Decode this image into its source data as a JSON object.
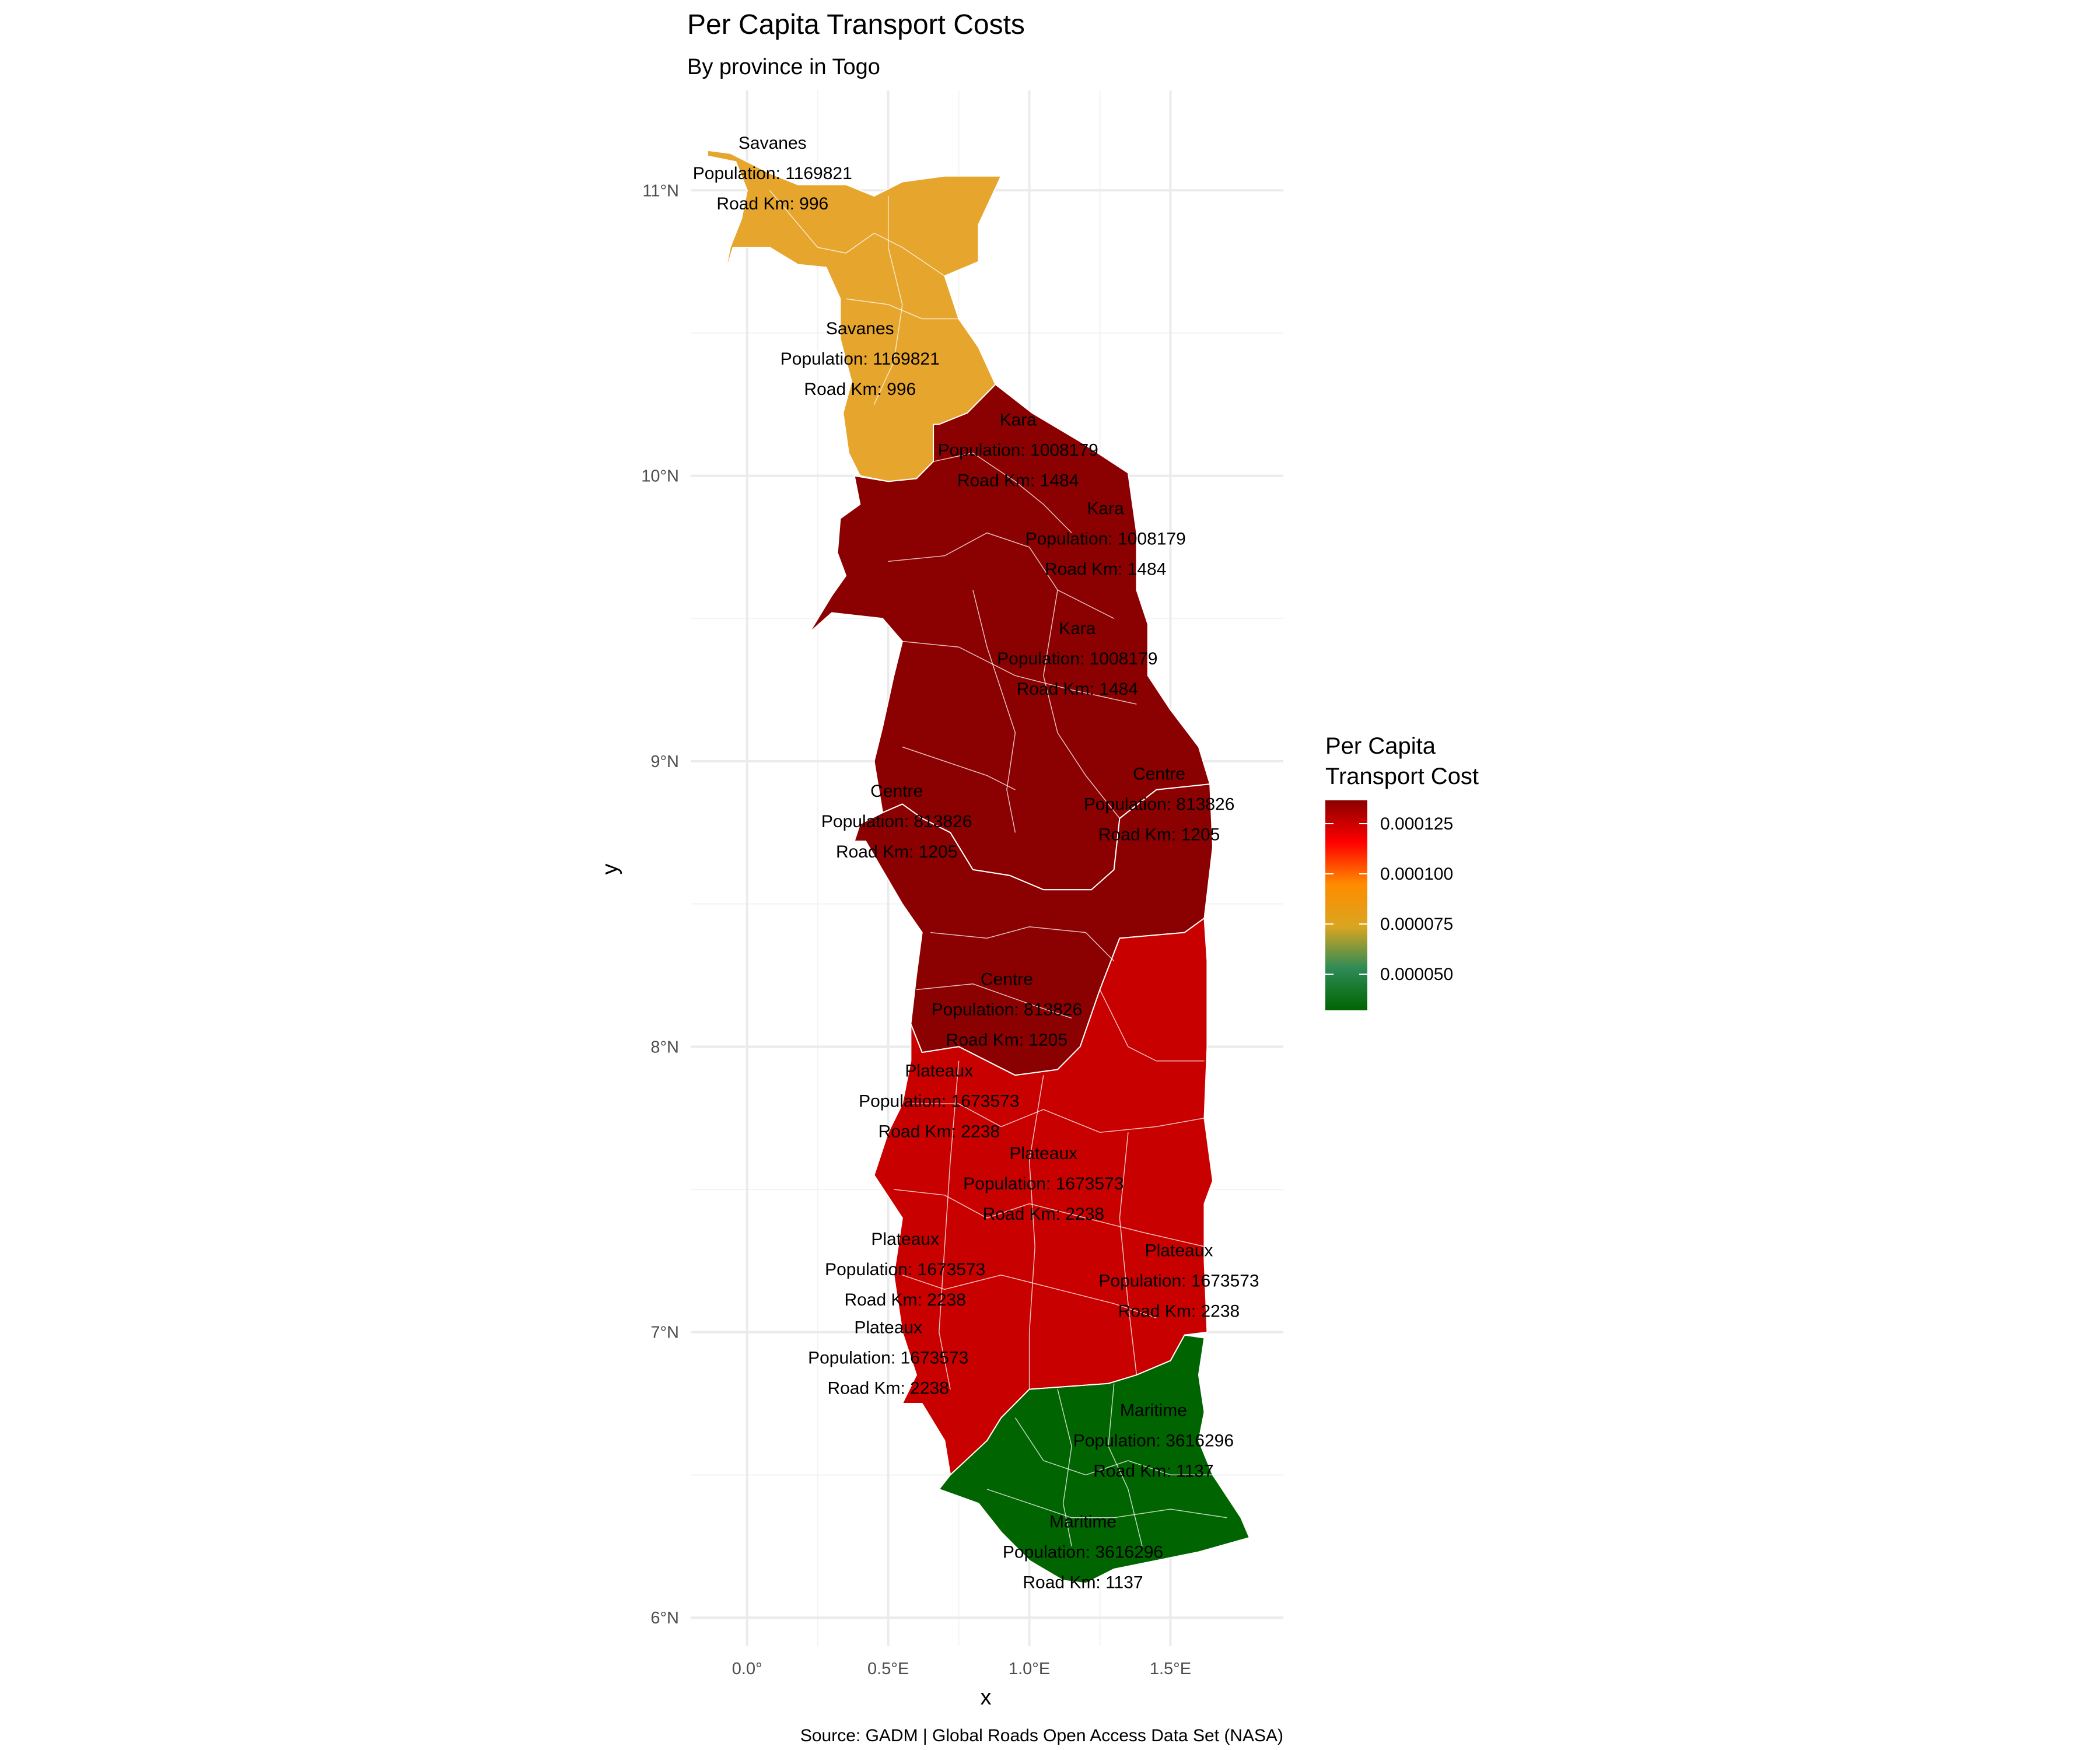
{
  "title": "Per Capita Transport Costs",
  "subtitle": "By province in Togo",
  "caption": "Source: GADM | Global Roads Open Access Data Set (NASA)",
  "axes": {
    "x_title": "x",
    "y_title": "y",
    "x_ticks": [
      {
        "value": 0.0,
        "label": "0.0°"
      },
      {
        "value": 0.5,
        "label": "0.5°E"
      },
      {
        "value": 1.0,
        "label": "1.0°E"
      },
      {
        "value": 1.5,
        "label": "1.5°E"
      }
    ],
    "y_ticks": [
      {
        "value": 6,
        "label": "6°N"
      },
      {
        "value": 7,
        "label": "7°N"
      },
      {
        "value": 8,
        "label": "8°N"
      },
      {
        "value": 9,
        "label": "9°N"
      },
      {
        "value": 10,
        "label": "10°N"
      },
      {
        "value": 11,
        "label": "11°N"
      }
    ],
    "x_range": [
      -0.2,
      1.9
    ],
    "y_range": [
      5.9,
      11.35
    ]
  },
  "legend": {
    "title_line1": "Per Capita",
    "title_line2": "Transport Cost",
    "labels": [
      "0.000125",
      "0.000100",
      "0.000075",
      "0.000050"
    ],
    "gradient_colors": [
      "#8b0000",
      "#ff0000",
      "#ff8c00",
      "#daa520",
      "#2e8b57",
      "#006400"
    ]
  },
  "regions": [
    {
      "name": "Savanes",
      "population": 1169821,
      "road_km": 996,
      "cost": 8.51e-05,
      "color": "#e6a52c"
    },
    {
      "name": "Kara",
      "population": 1008179,
      "road_km": 1484,
      "cost": 0.000147,
      "color": "#8b0000"
    },
    {
      "name": "Centre",
      "population": 813826,
      "road_km": 1205,
      "cost": 0.000148,
      "color": "#8b0000"
    },
    {
      "name": "Plateaux",
      "population": 1673573,
      "road_km": 2238,
      "cost": 0.000134,
      "color": "#c80000"
    },
    {
      "name": "Maritime",
      "population": 3616296,
      "road_km": 1137,
      "cost": 3.14e-05,
      "color": "#006400"
    }
  ],
  "labels": [
    {
      "name": "Savanes",
      "population_text": "Population: 1169821",
      "road_text": "Road Km: 996",
      "lon": 0.09,
      "lat": 11.06
    },
    {
      "name": "Savanes",
      "population_text": "Population: 1169821",
      "road_text": "Road Km: 996",
      "lon": 0.4,
      "lat": 10.41
    },
    {
      "name": "Kara",
      "population_text": "Population: 1008179",
      "road_text": "Road Km: 1484",
      "lon": 0.96,
      "lat": 10.09
    },
    {
      "name": "Kara",
      "population_text": "Population: 1008179",
      "road_text": "Road Km: 1484",
      "lon": 1.27,
      "lat": 9.78
    },
    {
      "name": "Kara",
      "population_text": "Population: 1008179",
      "road_text": "Road Km: 1484",
      "lon": 1.17,
      "lat": 9.36
    },
    {
      "name": "Centre",
      "population_text": "Population: 813826",
      "road_text": "Road Km: 1205",
      "lon": 0.53,
      "lat": 8.79
    },
    {
      "name": "Centre",
      "population_text": "Population: 813826",
      "road_text": "Road Km: 1205",
      "lon": 1.46,
      "lat": 8.85
    },
    {
      "name": "Centre",
      "population_text": "Population: 813826",
      "road_text": "Road Km: 1205",
      "lon": 0.92,
      "lat": 8.13
    },
    {
      "name": "Plateaux",
      "population_text": "Population: 1673573",
      "road_text": "Road Km: 2238",
      "lon": 0.68,
      "lat": 7.81
    },
    {
      "name": "Plateaux",
      "population_text": "Population: 1673573",
      "road_text": "Road Km: 2238",
      "lon": 1.05,
      "lat": 7.52
    },
    {
      "name": "Plateaux",
      "population_text": "Population: 1673573",
      "road_text": "Road Km: 2238",
      "lon": 0.56,
      "lat": 7.22
    },
    {
      "name": "Plateaux",
      "population_text": "Population: 1673573",
      "road_text": "Road Km: 2238",
      "lon": 1.53,
      "lat": 7.18
    },
    {
      "name": "Plateaux",
      "population_text": "Population: 1673573",
      "road_text": "Road Km: 2238",
      "lon": 0.5,
      "lat": 6.91
    },
    {
      "name": "Maritime",
      "population_text": "Population: 3616296",
      "road_text": "Road Km: 1137",
      "lon": 1.44,
      "lat": 6.62
    },
    {
      "name": "Maritime",
      "population_text": "Population: 3616296",
      "road_text": "Road Km: 1137",
      "lon": 1.19,
      "lat": 6.23
    }
  ]
}
